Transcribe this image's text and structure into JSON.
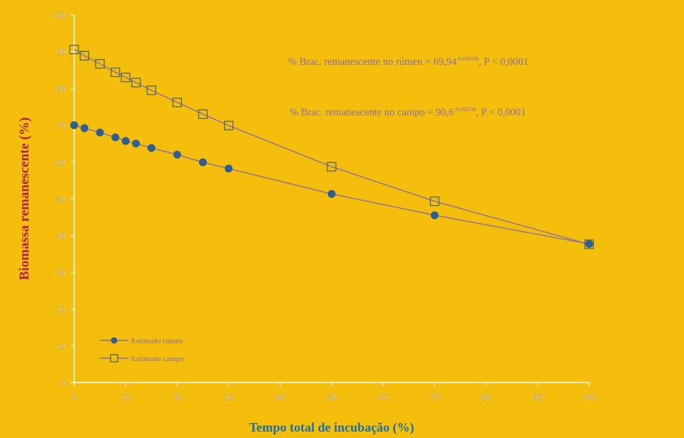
{
  "chart_data": {
    "type": "line",
    "title": "",
    "xlabel": "Tempo total de incubação (%)",
    "ylabel": "Biomassa remanescente (%)",
    "xlim": [
      0,
      100
    ],
    "ylim": [
      0,
      100
    ],
    "x_ticks": [
      0,
      10,
      20,
      30,
      40,
      50,
      60,
      70,
      80,
      90,
      100
    ],
    "y_ticks": [
      0,
      10,
      20,
      30,
      40,
      50,
      60,
      70,
      80,
      90,
      100
    ],
    "grid": false,
    "legend_position": "bottom-left",
    "series": [
      {
        "name": "Estimado rúmen",
        "marker": "filled-circle",
        "x": [
          0,
          2,
          5,
          8,
          10,
          12,
          15,
          20,
          25,
          30,
          50,
          70,
          100
        ],
        "y": [
          70.0,
          69.2,
          68.0,
          66.7,
          65.7,
          65.0,
          63.8,
          62.0,
          59.9,
          58.2,
          51.3,
          45.5,
          37.7
        ]
      },
      {
        "name": "Estimado campo",
        "marker": "open-square",
        "x": [
          0,
          2,
          5,
          8,
          10,
          12,
          15,
          20,
          25,
          30,
          50,
          70,
          100
        ],
        "y": [
          90.6,
          88.9,
          86.7,
          84.4,
          83.0,
          81.6,
          79.5,
          76.2,
          73.0,
          69.9,
          58.7,
          49.3,
          37.6
        ]
      }
    ],
    "annotations": [
      {
        "prefix": "% Brac. remanescente no rúmen = 69,94",
        "superscript": "-0,00618t",
        "suffix": ", P < 0,0001"
      },
      {
        "prefix": "% Brac. remanescente no campo = 90,6",
        "superscript": "-0,00874t",
        "suffix": ", P < 0,0001"
      }
    ],
    "colors": {
      "background": "#F5BD0C",
      "line": "#8A6FA0",
      "marker_filled": "#2F5F8F",
      "marker_open": "#4F6A55",
      "axis_title": "#B02050",
      "xaxis_title": "#1F6F9F",
      "tick_label": "#E8E8E8",
      "annotation_text": "#8A6FA0"
    }
  }
}
